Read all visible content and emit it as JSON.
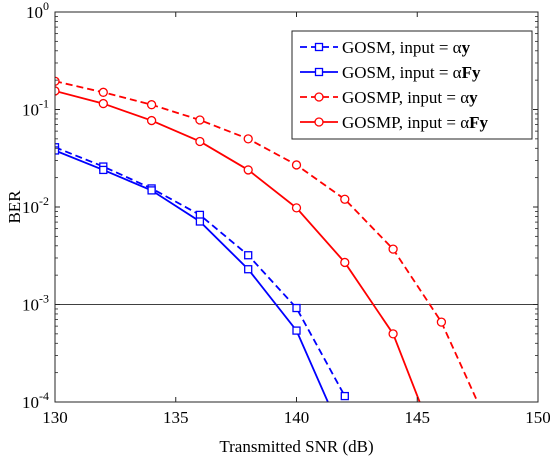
{
  "chart_data": {
    "type": "line",
    "title": "",
    "xlabel": "Transmitted SNR (dB)",
    "ylabel": "BER",
    "xlim": [
      130,
      150
    ],
    "ylim": [
      0.0001,
      1
    ],
    "yscale": "log",
    "xticks": [
      130,
      135,
      140,
      145,
      150
    ],
    "xtick_labels": [
      "130",
      "135",
      "140",
      "145",
      "150"
    ],
    "yticks": [
      0.0001,
      0.001,
      0.01,
      0.1,
      1
    ],
    "ytick_labels": [
      {
        "base": "10",
        "exp": "-4"
      },
      {
        "base": "10",
        "exp": "-3"
      },
      {
        "base": "10",
        "exp": "-2"
      },
      {
        "base": "10",
        "exp": "-1"
      },
      {
        "base": "10",
        "exp": "0"
      }
    ],
    "reference_line": {
      "y": 0.001,
      "color": "#000000"
    },
    "legend_position": "top-right",
    "series": [
      {
        "name": "GOSM, input = αy",
        "name_parts": {
          "prefix": "GOSM, input = ",
          "greek": "α",
          "bold": "y"
        },
        "color": "#0000ff",
        "line_style": "dashed",
        "marker": "square",
        "x": [
          130,
          132,
          134,
          136,
          138,
          140,
          142
        ],
        "y": [
          0.041,
          0.026,
          0.0155,
          0.0083,
          0.0032,
          0.00092,
          0.000115
        ]
      },
      {
        "name": "GOSM, input = αFy",
        "name_parts": {
          "prefix": "GOSM, input = ",
          "greek": "α",
          "bold": "Fy"
        },
        "color": "#0000ff",
        "line_style": "solid",
        "marker": "square",
        "x": [
          130,
          132,
          134,
          136,
          138,
          140,
          141.3
        ],
        "y": [
          0.038,
          0.024,
          0.0148,
          0.0071,
          0.0023,
          0.00054,
          0.0001
        ]
      },
      {
        "name": "GOSMP, input = αy",
        "name_parts": {
          "prefix": "GOSMP, input = ",
          "greek": "α",
          "bold": "y"
        },
        "color": "#ff0000",
        "line_style": "dashed",
        "marker": "circle",
        "x": [
          130,
          132,
          134,
          136,
          138,
          140,
          142,
          144,
          146,
          147.5
        ],
        "y": [
          0.195,
          0.15,
          0.112,
          0.078,
          0.05,
          0.027,
          0.012,
          0.0037,
          0.00066,
          0.0001
        ]
      },
      {
        "name": "GOSMP, input = αFy",
        "name_parts": {
          "prefix": "GOSMP, input = ",
          "greek": "α",
          "bold": "Fy"
        },
        "color": "#ff0000",
        "line_style": "solid",
        "marker": "circle",
        "x": [
          130,
          132,
          134,
          136,
          138,
          140,
          142,
          144,
          145.1
        ],
        "y": [
          0.155,
          0.115,
          0.077,
          0.047,
          0.024,
          0.0098,
          0.0027,
          0.0005,
          0.0001
        ]
      }
    ],
    "marker_count": [
      7,
      6,
      9,
      8
    ]
  }
}
